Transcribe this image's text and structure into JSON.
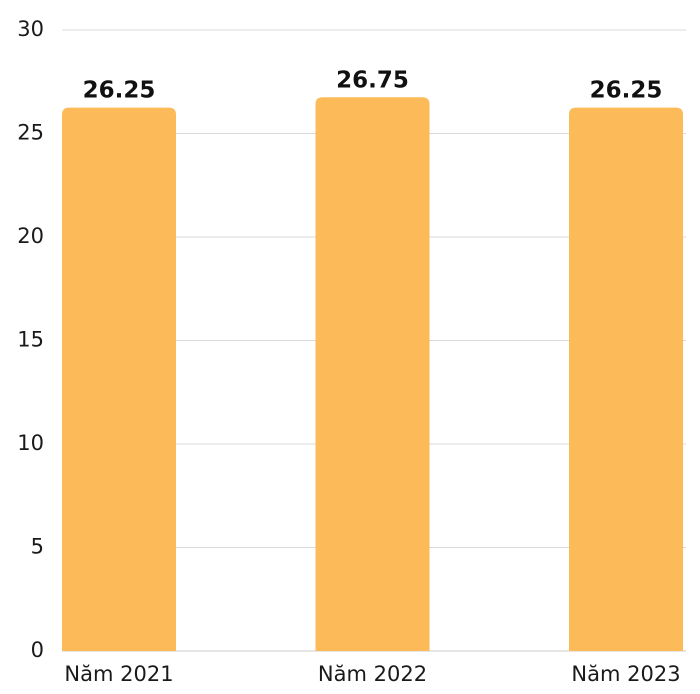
{
  "chart_data": {
    "type": "bar",
    "categories": [
      "Năm 2021",
      "Năm 2022",
      "Năm 2023"
    ],
    "values": [
      26.25,
      26.75,
      26.25
    ],
    "value_labels": [
      "26.25",
      "26.75",
      "26.25"
    ],
    "title": "",
    "xlabel": "",
    "ylabel": "",
    "ylim": [
      0,
      30
    ],
    "yticks": [
      0,
      5,
      10,
      15,
      20,
      25,
      30
    ],
    "ytick_labels": [
      "0",
      "5",
      "10",
      "15",
      "20",
      "25",
      "30"
    ],
    "grid": true,
    "legend": "none",
    "bar_color": "#FDBA58"
  }
}
